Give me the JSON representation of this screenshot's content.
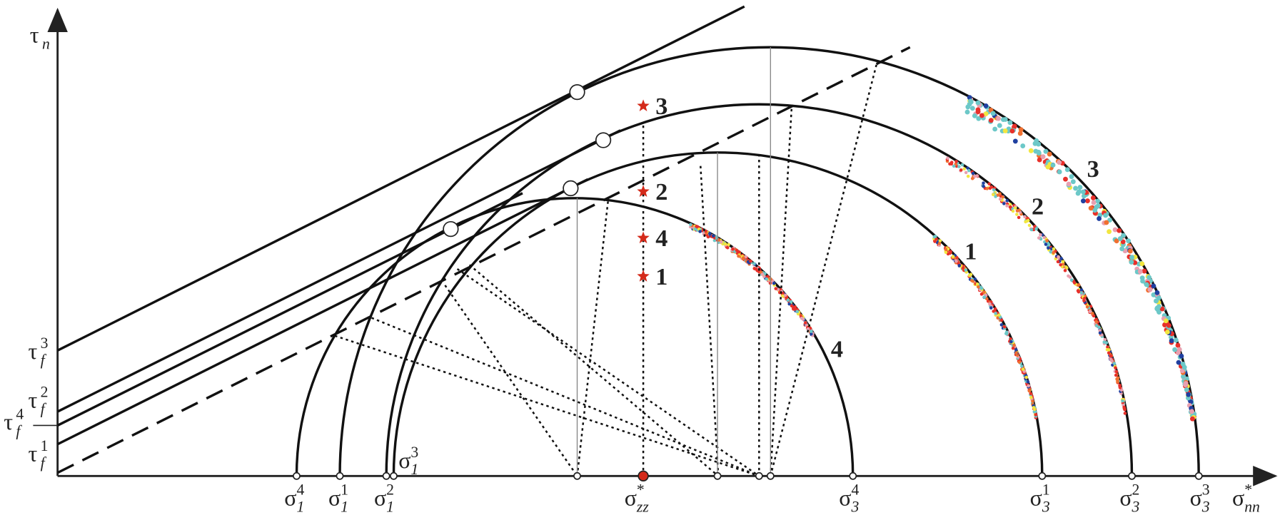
{
  "axes": {
    "y_label": {
      "base": "τ",
      "sub": "n"
    },
    "x_label": {
      "base": "σ",
      "sup": "*",
      "sub": "nn"
    }
  },
  "x_ticks": [
    {
      "base": "σ",
      "sup": "4",
      "sub": "1"
    },
    {
      "base": "σ",
      "sup": "1",
      "sub": "1"
    },
    {
      "base": "σ",
      "sup": "2",
      "sub": "1"
    },
    {
      "base": "σ",
      "sup": "3",
      "sub": "1"
    },
    {
      "base": "σ",
      "sup": "*",
      "sub": "zz"
    },
    {
      "base": "σ",
      "sup": "4",
      "sub": "3"
    },
    {
      "base": "σ",
      "sup": "1",
      "sub": "3"
    },
    {
      "base": "σ",
      "sup": "2",
      "sub": "3"
    },
    {
      "base": "σ",
      "sup": "3",
      "sub": "3"
    }
  ],
  "y_ticks": [
    {
      "base": "τ",
      "sup": "3",
      "sub": "f"
    },
    {
      "base": "τ",
      "sup": "2",
      "sub": "f"
    },
    {
      "base": "τ",
      "sup": "4",
      "sub": "f"
    },
    {
      "base": "τ",
      "sup": "1",
      "sub": "f"
    }
  ],
  "circle_labels": [
    "1",
    "2",
    "3",
    "4"
  ],
  "star_labels": [
    "3",
    "2",
    "4",
    "1"
  ]
}
